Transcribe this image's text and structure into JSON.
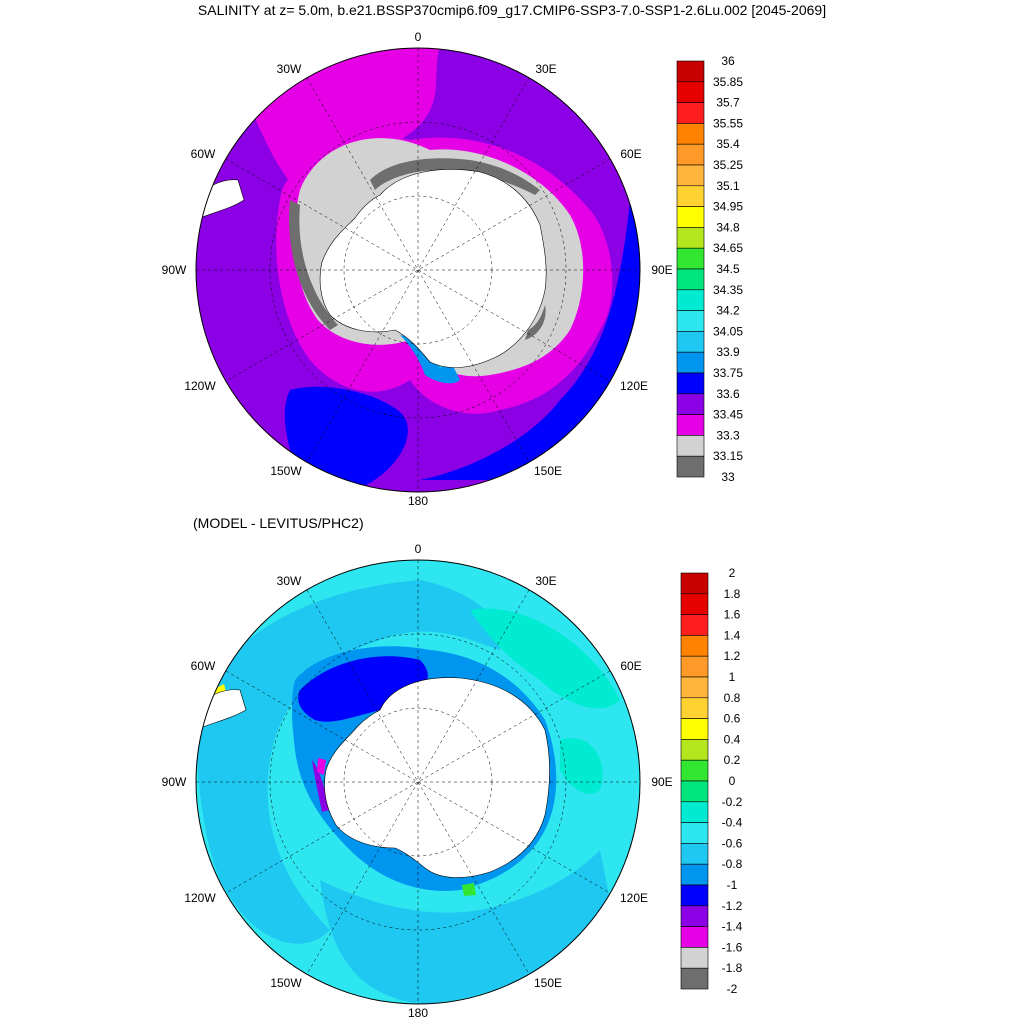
{
  "title": "SALINITY at z=   5.0m, b.e21.BSSP370cmip6.f09_g17.CMIP6-SSP3-7.0-SSP1-2.6Lu.002 [2045-2069]",
  "subtitle": "(MODEL - LEVITUS/PHC2)",
  "longitude_labels": {
    "lon_0": "0",
    "lon_30w": "30W",
    "lon_30e": "30E",
    "lon_60w": "60W",
    "lon_60e": "60E",
    "lon_90w": "90W",
    "lon_90e": "90E",
    "lon_120w": "120W",
    "lon_120e": "120E",
    "lon_150w": "150W",
    "lon_150e": "150E",
    "lon_180": "180"
  },
  "colorbar_top": {
    "labels": [
      "36",
      "35.85",
      "35.7",
      "35.55",
      "35.4",
      "35.25",
      "35.1",
      "34.95",
      "34.8",
      "34.65",
      "34.5",
      "34.35",
      "34.2",
      "34.05",
      "33.9",
      "33.75",
      "33.6",
      "33.45",
      "33.3",
      "33.15",
      "33"
    ],
    "colors": [
      "#c80000",
      "#e60000",
      "#ff1e1e",
      "#ff8200",
      "#ff9a28",
      "#ffb43c",
      "#ffd232",
      "#ffff00",
      "#b4e61e",
      "#32e632",
      "#00e67d",
      "#00ebd2",
      "#2ee6f0",
      "#1ec8f0",
      "#0096f0",
      "#0000ff",
      "#8c00e6",
      "#e600e6",
      "#d2d2d2",
      "#6e6e6e"
    ]
  },
  "colorbar_bottom": {
    "labels": [
      "2",
      "1.8",
      "1.6",
      "1.4",
      "1.2",
      "1",
      "0.8",
      "0.6",
      "0.4",
      "0.2",
      "0",
      "-0.2",
      "-0.4",
      "-0.6",
      "-0.8",
      "-1",
      "-1.2",
      "-1.4",
      "-1.6",
      "-1.8",
      "-2"
    ],
    "colors": [
      "#c80000",
      "#e60000",
      "#ff1e1e",
      "#ff8200",
      "#ff9a28",
      "#ffb43c",
      "#ffd232",
      "#ffff00",
      "#b4e61e",
      "#32e632",
      "#00e67d",
      "#00ebd2",
      "#2ee6f0",
      "#1ec8f0",
      "#0096f0",
      "#0000ff",
      "#8c00e6",
      "#e600e6",
      "#d2d2d2",
      "#6e6e6e"
    ]
  },
  "field_colors": {
    "top": {
      "outer": "#8c00e6",
      "magenta": "#e600e6",
      "gray": "#d2d2d2",
      "darkgray": "#6e6e6e",
      "blue": "#0000ff",
      "mblue": "#0096f0",
      "cyan": "#1ec8f0",
      "land": "#ffffff"
    },
    "bottom": {
      "base": "#2ee6f0",
      "light": "#00ebd2",
      "mid": "#1ec8f0",
      "deep": "#0096f0",
      "blue": "#0000ff",
      "purple": "#8c00e6",
      "green": "#32e632",
      "yellow": "#ffff00",
      "orange": "#ff9a28",
      "land": "#ffffff"
    }
  }
}
